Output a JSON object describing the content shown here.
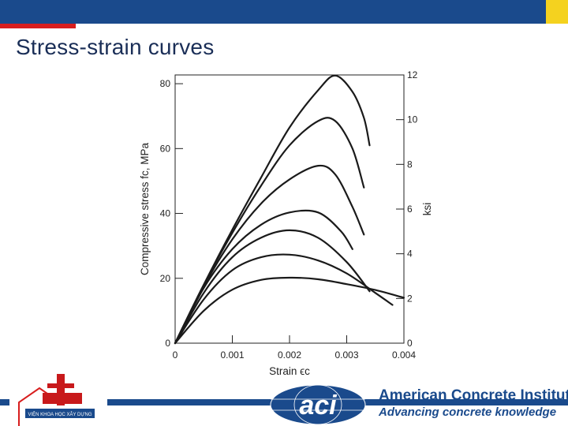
{
  "slide": {
    "title": "Stress-strain curves",
    "colors": {
      "band": "#1a4a8c",
      "accent_red": "#d81e1e",
      "accent_yellow": "#f4d21f"
    }
  },
  "logos": {
    "bst_text": "VIỆN KHOA HỌC XÂY DỰNG",
    "aci_mark": "aci",
    "aci_name": "American Concrete Institute",
    "aci_registered": "®",
    "aci_tagline": "Advancing concrete knowledge"
  },
  "chart_data": {
    "type": "line",
    "xlabel": "Strain ϵc",
    "ylabel": "Compressive stress fc, MPa",
    "y2label": "ksi",
    "xlim": [
      0,
      0.004
    ],
    "ylim": [
      0,
      82.7
    ],
    "y2lim": [
      0,
      12
    ],
    "xticks": [
      "0",
      "0.001",
      "0.002",
      "0.003",
      "0.004"
    ],
    "yticks": [
      "0",
      "20",
      "40",
      "60",
      "80"
    ],
    "y2ticks": [
      "0",
      "2",
      "4",
      "6",
      "8",
      "10",
      "12"
    ],
    "grid": false,
    "series": [
      {
        "x": [
          0,
          0.0005,
          0.001,
          0.0015,
          0.002,
          0.0025,
          0.003,
          0.0035,
          0.004
        ],
        "y": [
          0,
          10,
          16.5,
          19.5,
          20.2,
          19.7,
          18.2,
          16.4,
          14
        ]
      },
      {
        "x": [
          0,
          0.0005,
          0.001,
          0.0015,
          0.002,
          0.0025,
          0.003,
          0.0035,
          0.0038
        ],
        "y": [
          0,
          13.5,
          22.5,
          26.5,
          27.3,
          25.5,
          21.5,
          15.5,
          11.8
        ]
      },
      {
        "x": [
          0,
          0.0005,
          0.001,
          0.0015,
          0.002,
          0.0025,
          0.003,
          0.0034
        ],
        "y": [
          0,
          15.5,
          26.5,
          32.5,
          34.8,
          32.5,
          25,
          16
        ]
      },
      {
        "x": [
          0,
          0.0005,
          0.001,
          0.0015,
          0.002,
          0.0025,
          0.0029,
          0.0031
        ],
        "y": [
          0,
          17,
          29,
          36.5,
          40.3,
          40.3,
          34.5,
          29
        ]
      },
      {
        "x": [
          0,
          0.0005,
          0.001,
          0.0015,
          0.002,
          0.0025,
          0.0028,
          0.0031,
          0.0033
        ],
        "y": [
          0,
          17.5,
          32,
          43,
          50.5,
          54.7,
          52,
          42,
          33.5
        ]
      },
      {
        "x": [
          0,
          0.0005,
          0.001,
          0.0015,
          0.002,
          0.0025,
          0.0028,
          0.0031,
          0.0033
        ],
        "y": [
          0,
          18,
          34,
          48.5,
          61,
          68.5,
          68.5,
          60,
          48
        ]
      },
      {
        "x": [
          0,
          0.0005,
          0.001,
          0.0015,
          0.002,
          0.0025,
          0.0028,
          0.0031,
          0.0033,
          0.0034
        ],
        "y": [
          0,
          18,
          35,
          51,
          66.5,
          78,
          82.5,
          77.5,
          69.5,
          61
        ]
      }
    ]
  }
}
